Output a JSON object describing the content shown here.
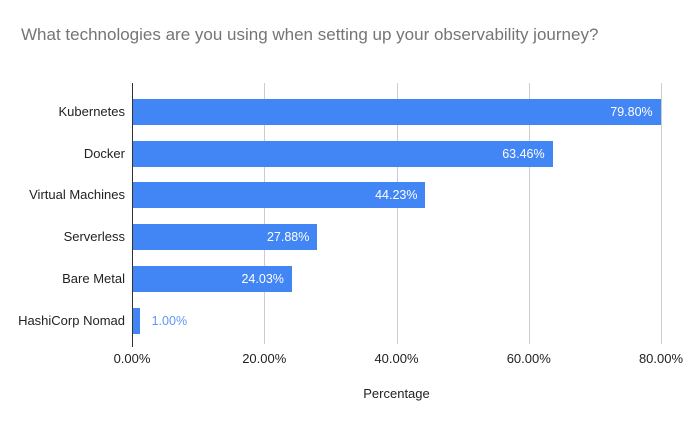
{
  "chart_data": {
    "type": "bar",
    "orientation": "horizontal",
    "title": "What technologies are you using when setting up your observability journey?",
    "categories": [
      "Kubernetes",
      "Docker",
      "Virtual Machines",
      "Serverless",
      "Bare Metal",
      "HashiCorp Nomad"
    ],
    "values": [
      79.8,
      63.46,
      44.23,
      27.88,
      24.03,
      1.0
    ],
    "value_labels": [
      "79.80%",
      "63.46%",
      "44.23%",
      "27.88%",
      "24.03%",
      "1.00%"
    ],
    "xlabel": "Percentage",
    "x_ticks": [
      {
        "value": 0,
        "label": "0.00%"
      },
      {
        "value": 20,
        "label": "20.00%"
      },
      {
        "value": 40,
        "label": "40.00%"
      },
      {
        "value": 60,
        "label": "60.00%"
      },
      {
        "value": 80,
        "label": "80.00%"
      }
    ],
    "xlim": [
      0,
      83.3
    ],
    "grid": true,
    "legend": "none",
    "colors": {
      "bar": "#4285f4",
      "value_label_inside": "#ffffff",
      "value_label_outside": "#5e97f6",
      "gridline": "#cccccc",
      "axis_line": "#333333",
      "title_text": "#757575",
      "label_text": "#222222",
      "background": "#ffffff"
    }
  }
}
